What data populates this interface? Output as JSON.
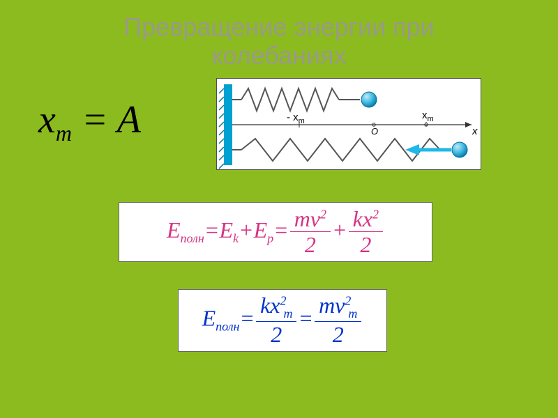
{
  "title_line1": "Превращение энергии при",
  "title_line2": "колебаниях",
  "amplitude": {
    "lhs_var": "x",
    "lhs_sub": "m",
    "eq": " = ",
    "rhs": "A"
  },
  "diagram": {
    "background": "#ffffff",
    "wall_color": "#00a0d2",
    "wall_hatch_color": "#0077a8",
    "spring_color": "#555555",
    "mass_fill": "#3db6e0",
    "mass_stroke": "#0a6f9a",
    "axis_color": "#333333",
    "arrow_color": "#1fb8e8",
    "labels": {
      "neg_xm": "- x",
      "neg_xm_sub": "m",
      "pos_xm": "x",
      "pos_xm_sub": "m",
      "origin": "O",
      "axis": "x"
    },
    "font_family": "Arial, sans-serif",
    "font_size_label": 14,
    "font_size_axis": 15
  },
  "formula1": {
    "color": "#d63384",
    "E": "E",
    "poln": "полн",
    "Ek": "E",
    "k": "k",
    "Ep": "E",
    "p": "p",
    "m": "m",
    "v": "v",
    "two": "2",
    "kvar": "k",
    "x": "x",
    "den2": "2",
    "eq": "=",
    "plus": "+"
  },
  "formula2": {
    "color": "#0033cc",
    "E": "E",
    "poln": "полн",
    "k": "k",
    "x": "x",
    "m": "m",
    "v": "v",
    "two": "2",
    "den2": "2",
    "sub_m": "m",
    "eq": "="
  }
}
